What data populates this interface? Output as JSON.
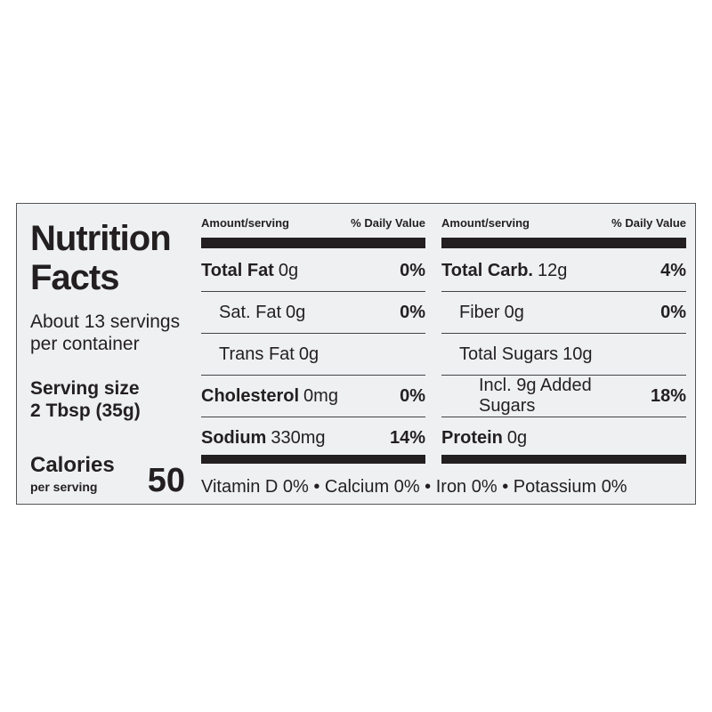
{
  "title": "Nutrition Facts",
  "servings": "About 13 servings per container",
  "serving_size_label": "Serving size",
  "serving_size": "2 Tbsp (35g)",
  "calories_label": "Calories",
  "calories_sub": "per serving",
  "calories": 50,
  "columns": [
    {
      "header_amount": "Amount/serving",
      "header_dv": "% Daily Value",
      "rows": [
        {
          "name": "Total Fat",
          "amount": "0g",
          "dv": "0%"
        },
        {
          "name": "Sat. Fat",
          "amount": "0g",
          "dv": "0%"
        },
        {
          "name": "Trans Fat",
          "amount": "0g"
        },
        {
          "name": "Cholesterol",
          "amount": "0mg",
          "dv": "0%"
        },
        {
          "name": "Sodium",
          "amount": "330mg",
          "dv": "14%"
        }
      ]
    },
    {
      "header_amount": "Amount/serving",
      "header_dv": "% Daily Value",
      "rows": [
        {
          "name": "Total Carb.",
          "amount": "12g",
          "dv": "4%"
        },
        {
          "name": "Fiber",
          "amount": "0g",
          "dv": "0%"
        },
        {
          "name": "Total Sugars",
          "amount": "10g"
        },
        {
          "name": "Incl. 9g Added Sugars",
          "dv": "18%"
        },
        {
          "name": "Protein",
          "amount": "0g"
        }
      ]
    }
  ],
  "footer": "Vitamin D 0% • Calcium 0% • Iron 0% • Potassium 0%"
}
